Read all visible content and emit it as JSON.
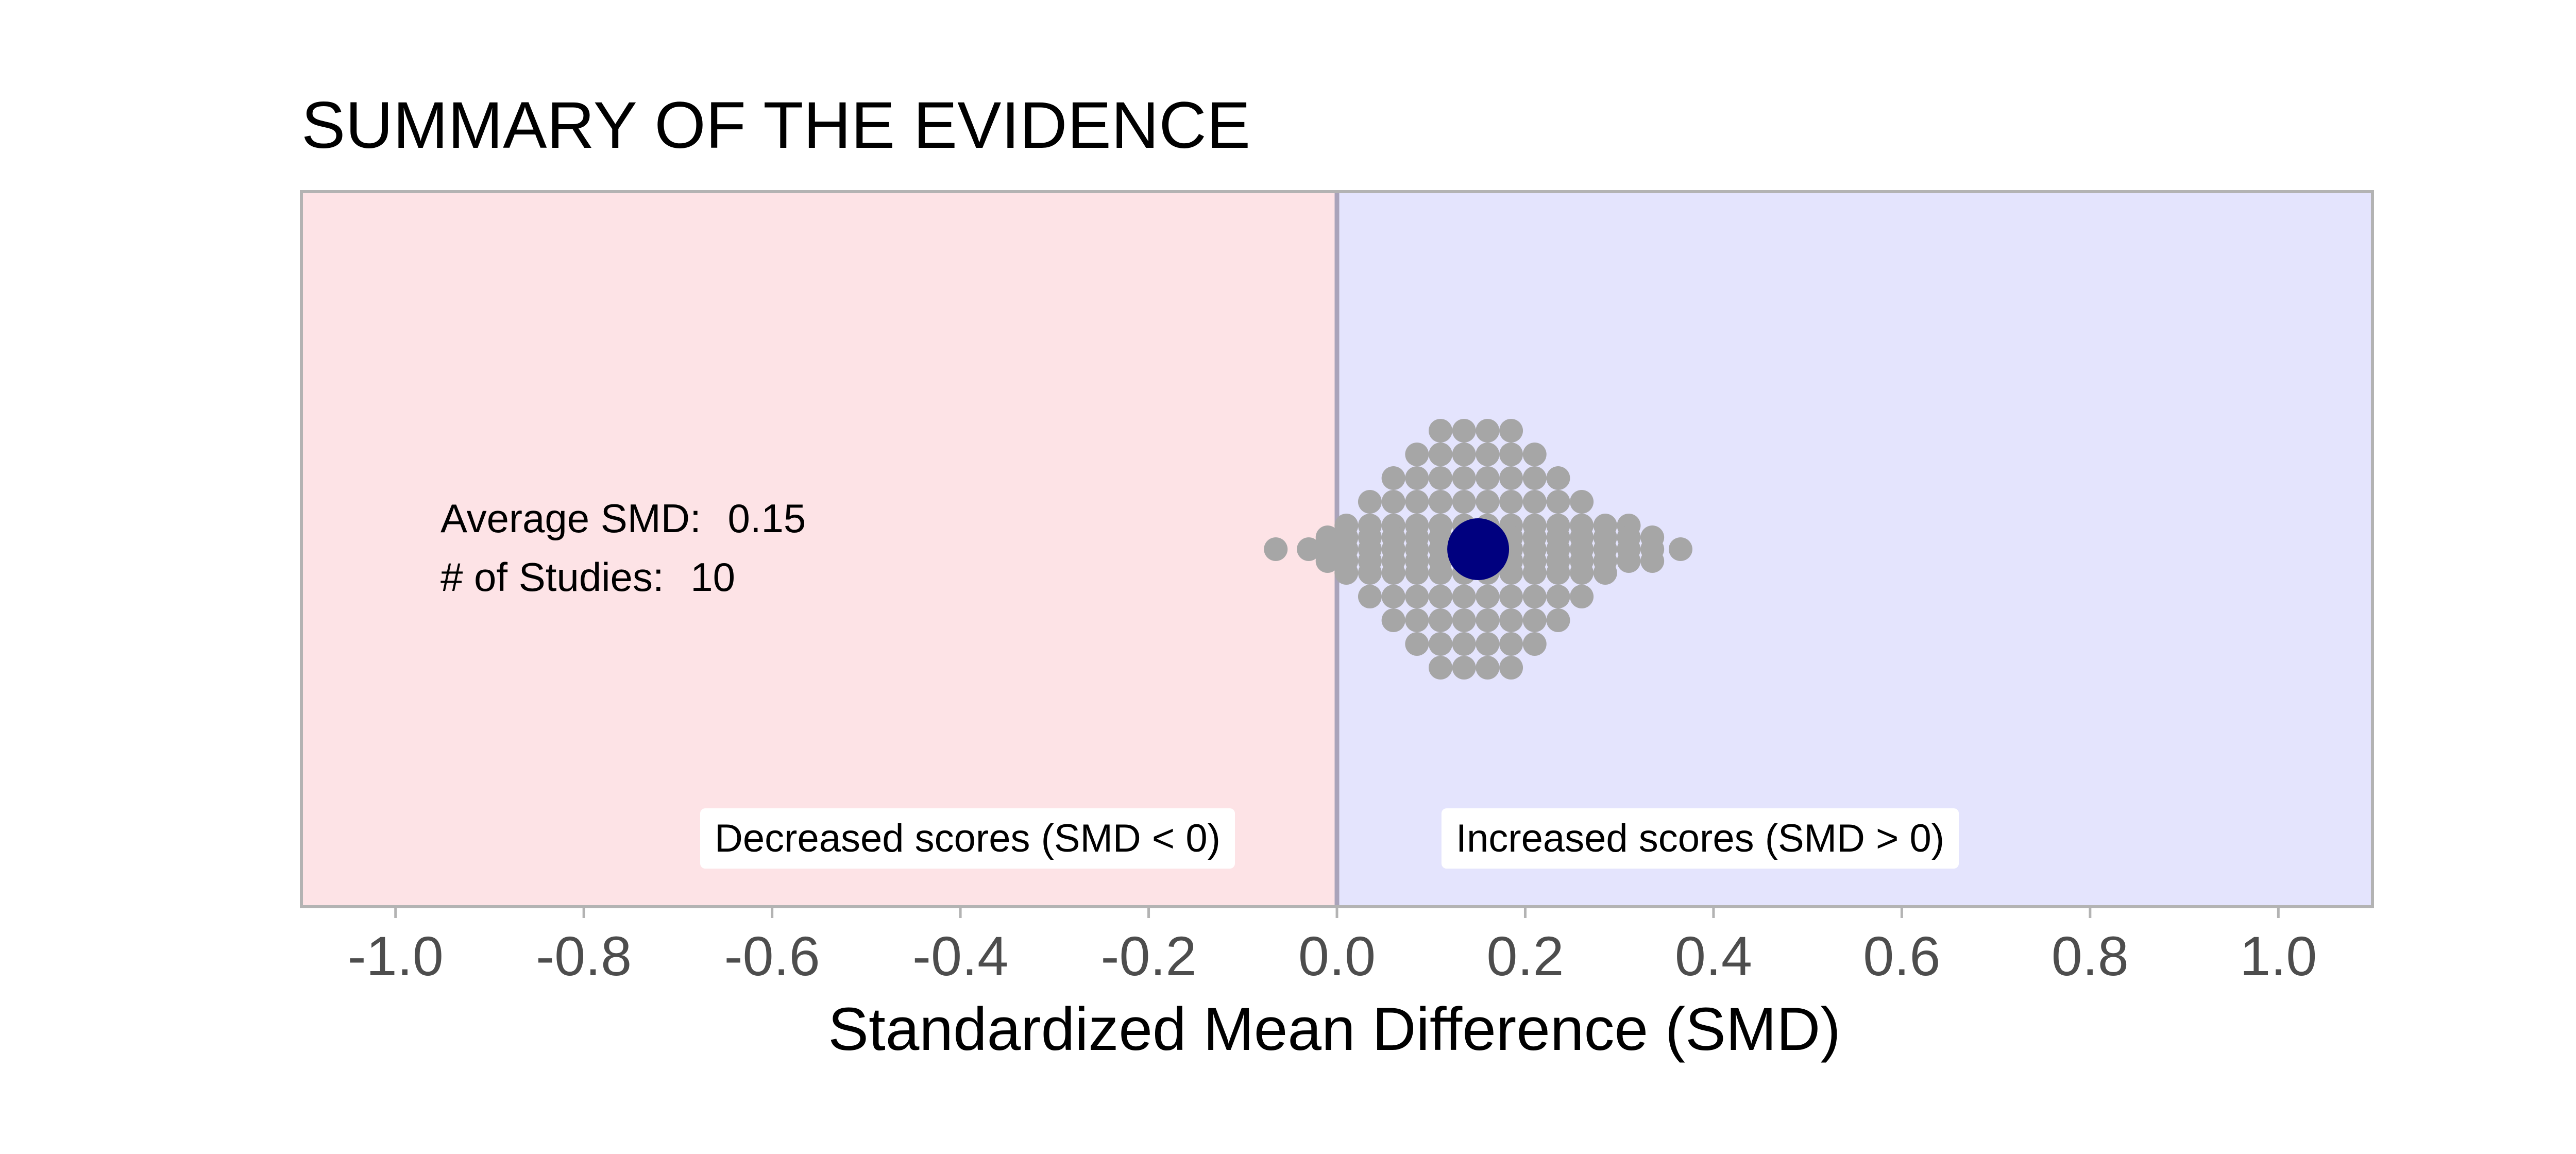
{
  "chart_data": {
    "type": "scatter",
    "title": "SUMMARY OF THE EVIDENCE",
    "xlabel": "Standardized Mean Difference (SMD)",
    "xlim": [
      -1.1,
      1.1
    ],
    "xticks": [
      -1.0,
      -0.8,
      -0.6,
      -0.4,
      -0.2,
      0.0,
      0.2,
      0.4,
      0.6,
      0.8,
      1.0
    ],
    "tick_labels": [
      "-1.0",
      "-0.8",
      "-0.6",
      "-0.4",
      "-0.2",
      "0.0",
      "0.2",
      "0.4",
      "0.6",
      "0.8",
      "1.0"
    ],
    "grid": false,
    "reference_line_x": 0,
    "regions": [
      {
        "label": "Decreased scores (SMD < 0)",
        "range": [
          -1.1,
          0
        ],
        "color": "#fde3e6"
      },
      {
        "label": "Increased scores (SMD > 0)",
        "range": [
          0,
          1.1
        ],
        "color": "#e4e4fd"
      }
    ],
    "summary": {
      "average_label": "Average SMD:",
      "average_value": "0.15",
      "studies_label": "# of Studies:",
      "studies_value": "10",
      "average_smd": 0.15
    },
    "beeswarm_rows": [
      {
        "level": 5,
        "x": [
          0.11,
          0.135,
          0.16,
          0.185
        ]
      },
      {
        "level": 4,
        "x": [
          0.085,
          0.11,
          0.135,
          0.16,
          0.185,
          0.21
        ]
      },
      {
        "level": 3,
        "x": [
          0.06,
          0.085,
          0.11,
          0.135,
          0.16,
          0.185,
          0.21,
          0.235
        ]
      },
      {
        "level": 2,
        "x": [
          0.035,
          0.06,
          0.085,
          0.11,
          0.135,
          0.16,
          0.185,
          0.21,
          0.235,
          0.26
        ]
      },
      {
        "level": 1,
        "x": [
          0.01,
          0.035,
          0.06,
          0.085,
          0.11,
          0.135,
          0.16,
          0.185,
          0.21,
          0.235,
          0.26,
          0.285,
          0.31
        ]
      },
      {
        "level": 0.5,
        "x": [
          -0.01,
          0.01,
          0.035,
          0.06,
          0.085,
          0.11,
          0.135,
          0.16,
          0.185,
          0.21,
          0.235,
          0.26,
          0.285,
          0.31,
          0.335
        ]
      },
      {
        "level": 0,
        "x": [
          -0.065,
          -0.03,
          -0.01,
          0.01,
          0.035,
          0.06,
          0.085,
          0.11,
          0.135,
          0.16,
          0.185,
          0.21,
          0.235,
          0.26,
          0.285,
          0.31,
          0.335,
          0.365
        ]
      },
      {
        "level": -0.5,
        "x": [
          -0.01,
          0.01,
          0.035,
          0.06,
          0.085,
          0.11,
          0.135,
          0.16,
          0.185,
          0.21,
          0.235,
          0.26,
          0.285,
          0.31,
          0.335
        ]
      },
      {
        "level": -1,
        "x": [
          0.01,
          0.035,
          0.06,
          0.085,
          0.11,
          0.135,
          0.16,
          0.185,
          0.21,
          0.235,
          0.26,
          0.285
        ]
      },
      {
        "level": -2,
        "x": [
          0.035,
          0.06,
          0.085,
          0.11,
          0.135,
          0.16,
          0.185,
          0.21,
          0.235,
          0.26
        ]
      },
      {
        "level": -3,
        "x": [
          0.06,
          0.085,
          0.11,
          0.135,
          0.16,
          0.185,
          0.21,
          0.235
        ]
      },
      {
        "level": -4,
        "x": [
          0.085,
          0.11,
          0.135,
          0.16,
          0.185,
          0.21
        ]
      },
      {
        "level": -5,
        "x": [
          0.11,
          0.135,
          0.16,
          0.185
        ]
      }
    ],
    "colors": {
      "sample_dot": "#a6a6a6",
      "average_dot": "#00007f",
      "reference_line": "#a9a3ba",
      "panel_border": "#b3b3b3",
      "tick_label": "#4d4d4d"
    }
  }
}
